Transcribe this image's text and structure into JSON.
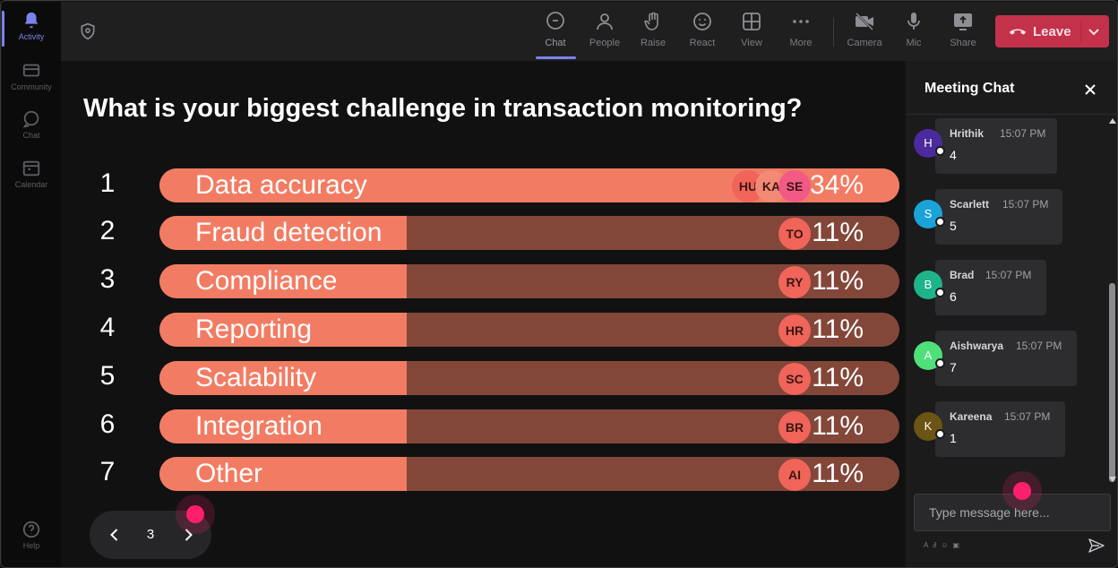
{
  "rail": {
    "items": [
      {
        "label": "Activity",
        "icon": "bell-icon"
      },
      {
        "label": "Community",
        "icon": "community-icon"
      },
      {
        "label": "Chat",
        "icon": "chat-icon"
      },
      {
        "label": "Calendar",
        "icon": "calendar-icon"
      },
      {
        "label": "Help",
        "icon": "help-icon"
      }
    ]
  },
  "toolbar": {
    "chat": "Chat",
    "people": "People",
    "raise": "Raise",
    "react": "React",
    "view": "View",
    "more": "More",
    "camera": "Camera",
    "mic": "Mic",
    "share": "Share",
    "leave": "Leave"
  },
  "poll": {
    "question": "What is your biggest challenge in transaction monitoring?",
    "options": [
      {
        "num": "1",
        "label": "Data accuracy",
        "percent": "34%",
        "fraction": 1.0,
        "voters": [
          "HU",
          "KA",
          "SE"
        ]
      },
      {
        "num": "2",
        "label": "Fraud detection",
        "percent": "11%",
        "fraction": 0.334,
        "voters": [
          "TO"
        ]
      },
      {
        "num": "3",
        "label": "Compliance",
        "percent": "11%",
        "fraction": 0.334,
        "voters": [
          "RY"
        ]
      },
      {
        "num": "4",
        "label": "Reporting",
        "percent": "11%",
        "fraction": 0.334,
        "voters": [
          "HR"
        ]
      },
      {
        "num": "5",
        "label": "Scalability",
        "percent": "11%",
        "fraction": 0.334,
        "voters": [
          "SC"
        ]
      },
      {
        "num": "6",
        "label": "Integration",
        "percent": "11%",
        "fraction": 0.334,
        "voters": [
          "BR"
        ]
      },
      {
        "num": "7",
        "label": "Other",
        "percent": "11%",
        "fraction": 0.334,
        "voters": [
          "AI"
        ]
      }
    ],
    "page": "3"
  },
  "chat": {
    "title": "Meeting Chat",
    "messages": [
      {
        "initial": "H",
        "name": "Hrithik",
        "time": "15:07 PM",
        "text": "4",
        "color": "#4b2a9e"
      },
      {
        "initial": "S",
        "name": "Scarlett",
        "time": "15:07 PM",
        "text": "5",
        "color": "#1aa3d8"
      },
      {
        "initial": "B",
        "name": "Brad",
        "time": "15:07 PM",
        "text": "6",
        "color": "#1fb38a"
      },
      {
        "initial": "A",
        "name": "Aishwarya",
        "time": "15:07 PM",
        "text": "7",
        "color": "#4fe07a"
      },
      {
        "initial": "K",
        "name": "Kareena",
        "time": "15:07 PM",
        "text": "1",
        "color": "#6b5414"
      }
    ],
    "compose_placeholder": "Type message here..."
  },
  "colors": {
    "accent": "#7b83eb",
    "leave": "#c4314b",
    "bar_fill": "#f27c63",
    "bar_track": "#83473a",
    "cursor": "#ff1f6d"
  }
}
